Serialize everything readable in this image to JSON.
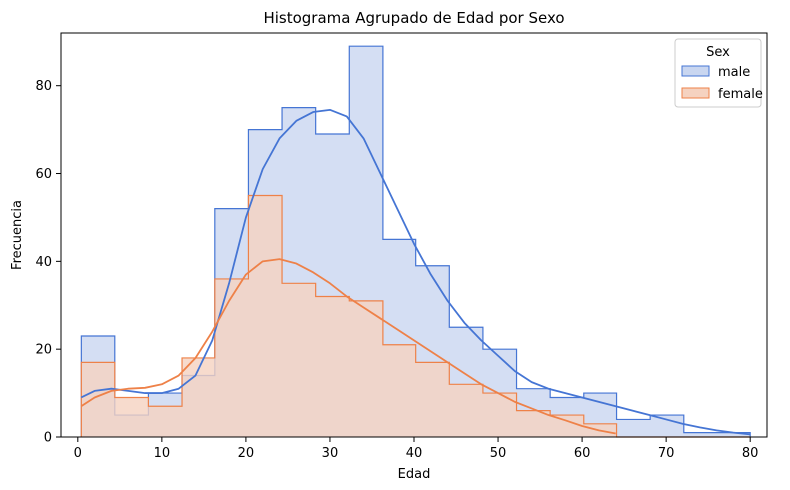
{
  "chart_data": {
    "type": "histogram",
    "title": "Histograma Agrupado de Edad por Sexo",
    "xlabel": "Edad",
    "ylabel": "Frecuencia",
    "xlim": [
      -2,
      82
    ],
    "ylim": [
      0,
      92
    ],
    "xticks": [
      0,
      10,
      20,
      30,
      40,
      50,
      60,
      70,
      80
    ],
    "yticks": [
      0,
      20,
      40,
      60,
      80
    ],
    "bin_edges": [
      0.42,
      4.4,
      8.4,
      12.4,
      16.3,
      20.3,
      24.3,
      28.3,
      32.3,
      36.3,
      40.2,
      44.2,
      48.2,
      52.2,
      56.2,
      60.2,
      64.1,
      68.1,
      72.1,
      76.1,
      80.0
    ],
    "legend": {
      "title": "Sex",
      "position": "top-right"
    },
    "series": [
      {
        "name": "male",
        "color": "#4575d4",
        "fill": "#c9d6f0",
        "counts": [
          23,
          5,
          10,
          14,
          52,
          70,
          75,
          69,
          89,
          45,
          39,
          25,
          20,
          11,
          9,
          10,
          4,
          5,
          1,
          1
        ],
        "kde_x": [
          0.4,
          2,
          4,
          6,
          8,
          10,
          12,
          14,
          16,
          18,
          20,
          22,
          24,
          26,
          28,
          30,
          32,
          34,
          36,
          38,
          40,
          42,
          44,
          46,
          48,
          50,
          52,
          54,
          56,
          58,
          60,
          62,
          64,
          66,
          68,
          70,
          72,
          74,
          76,
          78,
          80
        ],
        "kde_y": [
          9,
          10.5,
          11,
          10.5,
          10,
          10,
          11,
          14,
          22,
          35,
          50,
          61,
          68,
          72,
          74,
          74.5,
          73,
          68,
          60,
          52,
          44,
          37,
          31,
          26,
          22,
          18.5,
          15,
          12.5,
          11,
          10,
          9,
          8,
          7,
          6,
          5,
          4,
          3,
          2.2,
          1.5,
          1,
          0.6
        ]
      },
      {
        "name": "female",
        "color": "#ee8148",
        "fill": "#f5d2c0",
        "counts": [
          17,
          9,
          7,
          18,
          36,
          55,
          35,
          32,
          31,
          21,
          17,
          12,
          10,
          6,
          5,
          3,
          0,
          0,
          0,
          0
        ],
        "kde_x": [
          0.4,
          2,
          4,
          6,
          8,
          10,
          12,
          14,
          16,
          18,
          20,
          22,
          24,
          26,
          28,
          30,
          32,
          34,
          36,
          38,
          40,
          42,
          44,
          46,
          48,
          50,
          52,
          54,
          56,
          58,
          60,
          62,
          64
        ],
        "kde_y": [
          7,
          9,
          10.5,
          11,
          11.2,
          12,
          14,
          18,
          24,
          31,
          37,
          40,
          40.5,
          39.5,
          37.5,
          35,
          32,
          29.5,
          27,
          24.5,
          22,
          19.5,
          17,
          14.5,
          12,
          10,
          8,
          6.5,
          5,
          3.8,
          2.5,
          1.5,
          0.8
        ]
      }
    ]
  }
}
